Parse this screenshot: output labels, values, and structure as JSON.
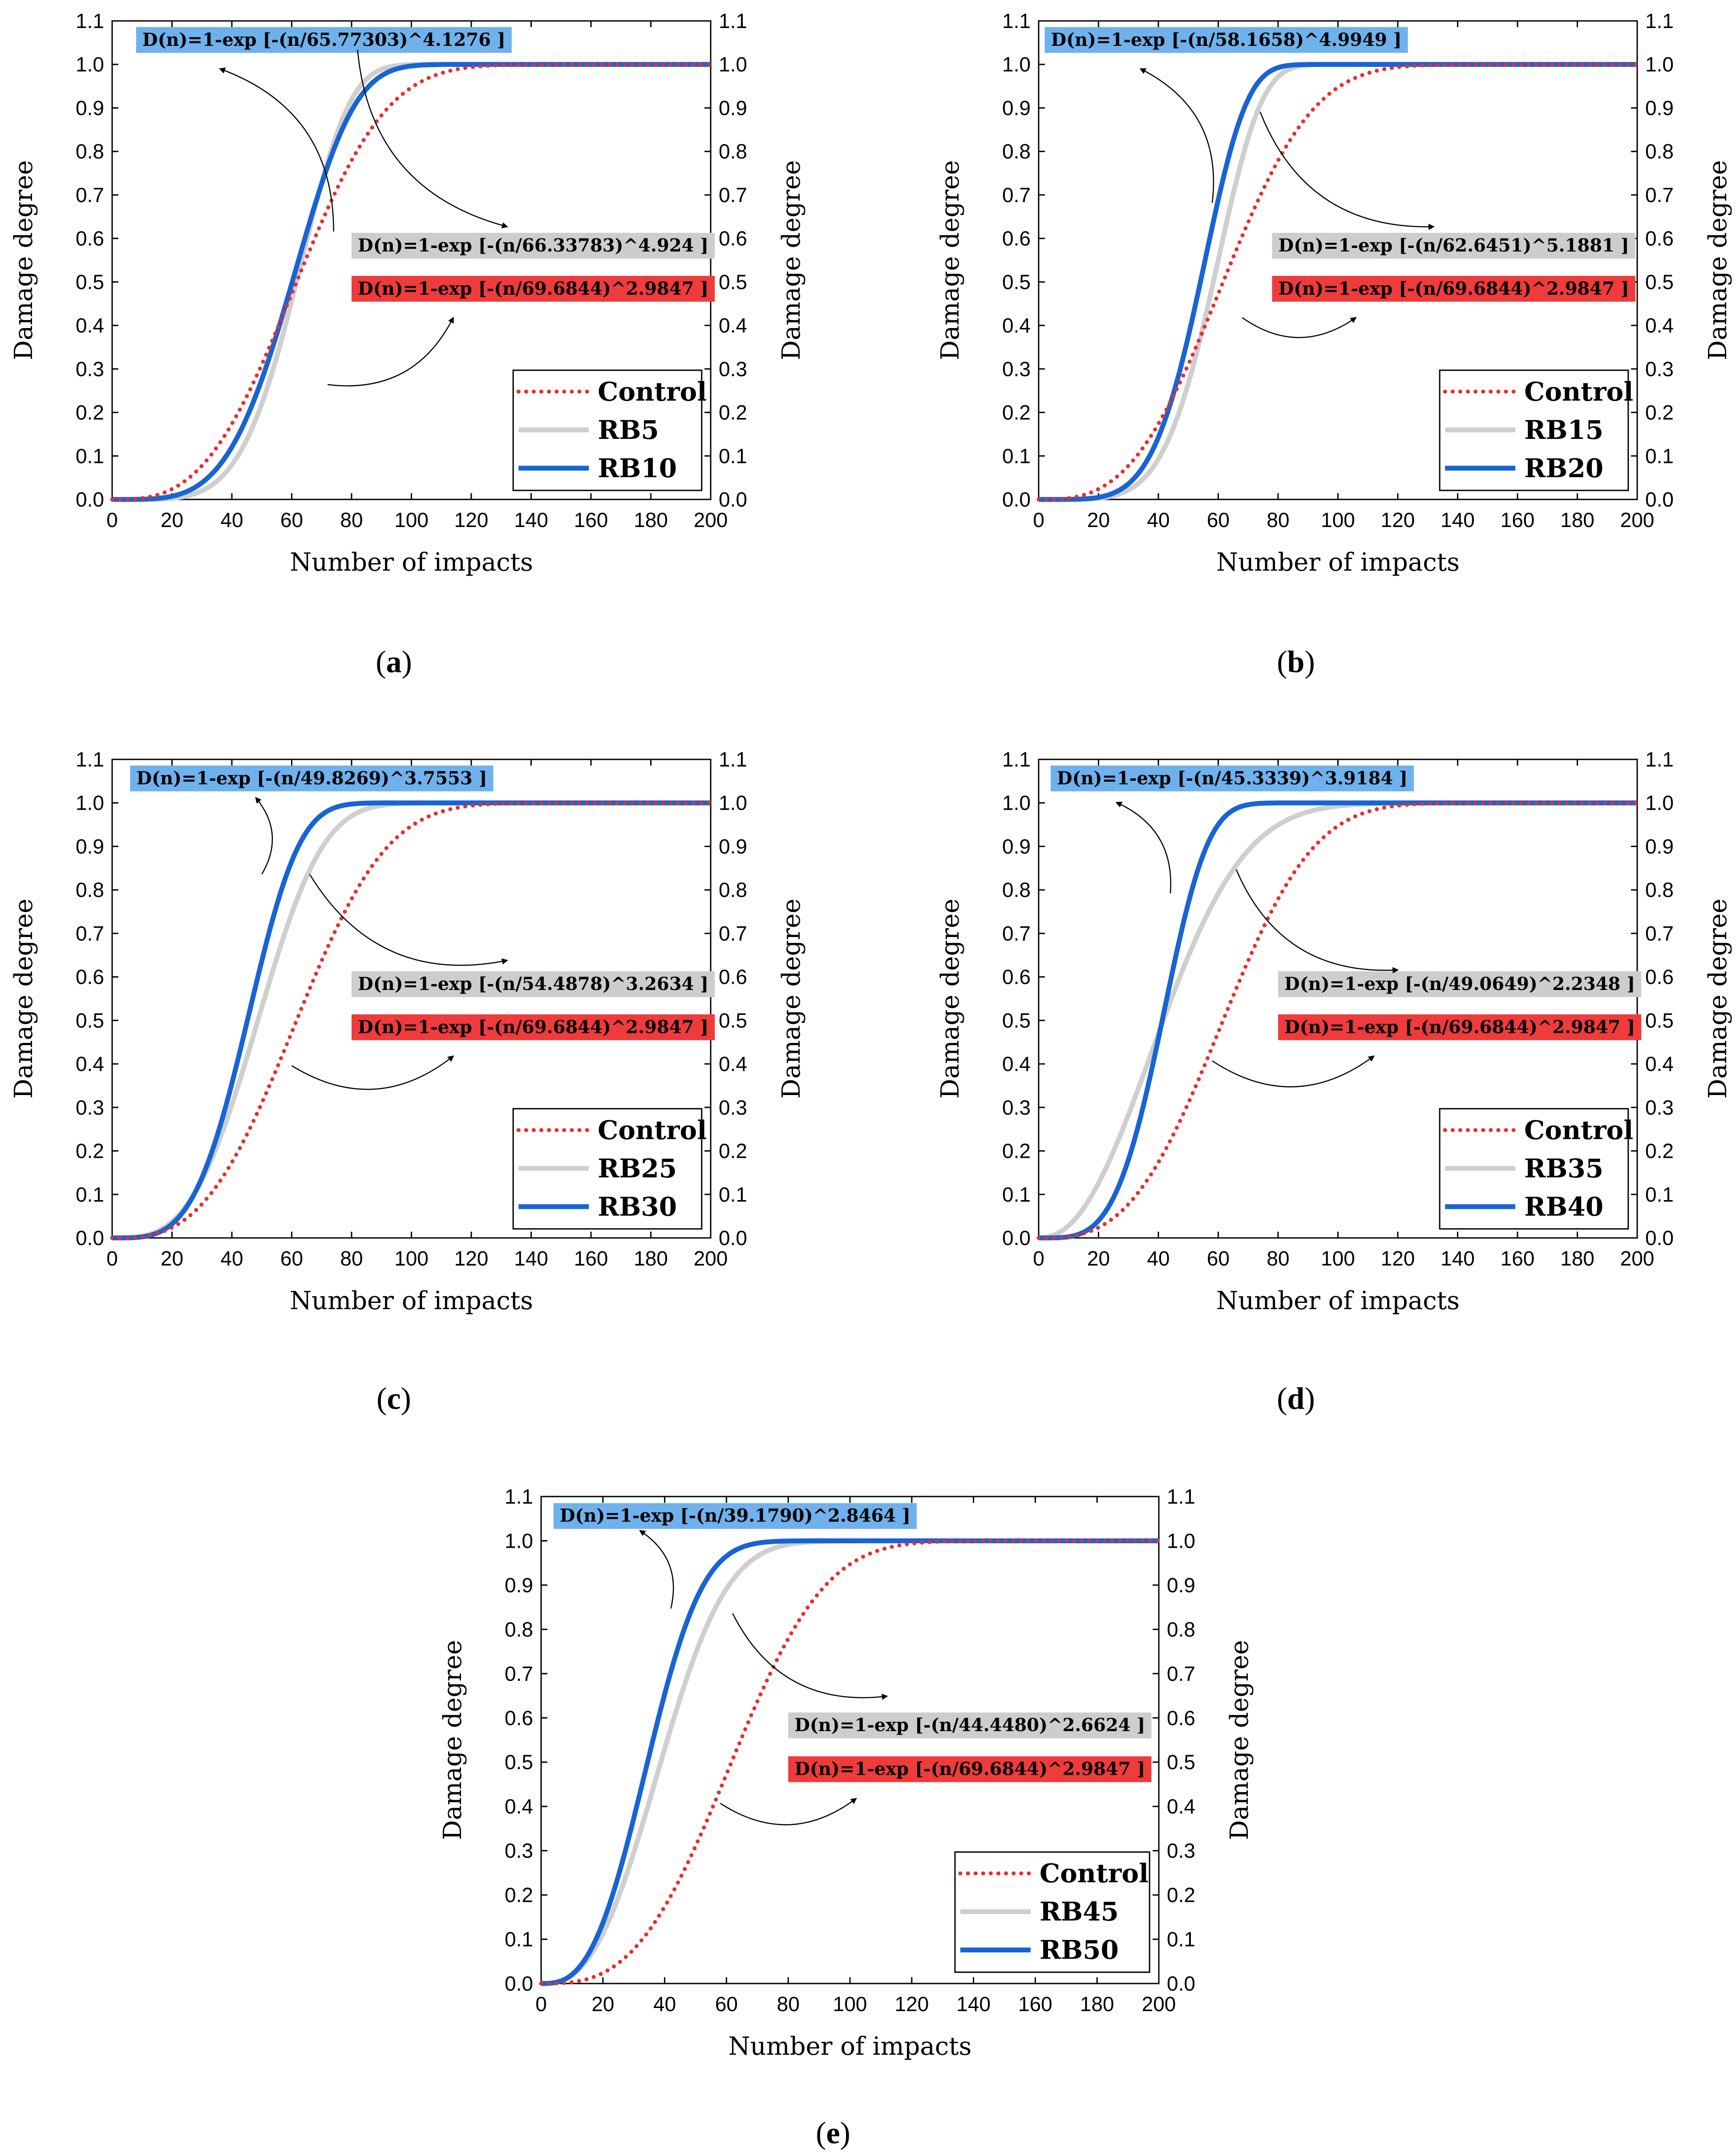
{
  "figure": {
    "colors": {
      "control": "#ee2b2b",
      "rb_light": "#cfcfcf",
      "rb_dark": "#1764d4",
      "eq_blue_bg": "#6fb1ec",
      "eq_gray_bg": "#cdcdcd",
      "eq_red_bg": "#ef3b3b"
    }
  },
  "chart_data": [
    {
      "type": "line",
      "panel_label": "a",
      "xlabel": "Number of impacts",
      "ylabel": "Damage degree",
      "ylabel_right": "Damage degree",
      "xlim": [
        0,
        200
      ],
      "ylim": [
        0,
        1.1
      ],
      "x_ticks": [
        "0",
        "20",
        "40",
        "60",
        "80",
        "100",
        "120",
        "140",
        "160",
        "180",
        "200"
      ],
      "y_ticks": [
        "0.0",
        "0.1",
        "0.2",
        "0.3",
        "0.4",
        "0.5",
        "0.6",
        "0.7",
        "0.8",
        "0.9",
        "1.0",
        "1.1"
      ],
      "series": [
        {
          "name": "Control",
          "style": "dotted",
          "color_key": "control",
          "eta": 69.6844,
          "beta": 2.9847
        },
        {
          "name": "RB5",
          "style": "solid",
          "color_key": "rb_light",
          "eta": 66.33783,
          "beta": 4.924
        },
        {
          "name": "RB10",
          "style": "solid",
          "color_key": "rb_dark",
          "eta": 65.77303,
          "beta": 4.1276
        }
      ],
      "equations": {
        "top": "D(n)=1-exp [-(n/65.77303)^4.1276 ]",
        "mid": "D(n)=1-exp [-(n/66.33783)^4.924 ]",
        "low": "D(n)=1-exp [-(n/69.6844)^2.9847 ]"
      }
    },
    {
      "type": "line",
      "panel_label": "b",
      "xlabel": "Number of impacts",
      "ylabel": "Damage degree",
      "ylabel_right": "Damage degree",
      "xlim": [
        0,
        200
      ],
      "ylim": [
        0,
        1.1
      ],
      "x_ticks": [
        "0",
        "20",
        "40",
        "60",
        "80",
        "100",
        "120",
        "140",
        "160",
        "180",
        "200"
      ],
      "y_ticks": [
        "0.0",
        "0.1",
        "0.2",
        "0.3",
        "0.4",
        "0.5",
        "0.6",
        "0.7",
        "0.8",
        "0.9",
        "1.0",
        "1.1"
      ],
      "series": [
        {
          "name": "Control",
          "style": "dotted",
          "color_key": "control",
          "eta": 69.6844,
          "beta": 2.9847
        },
        {
          "name": "RB15",
          "style": "solid",
          "color_key": "rb_light",
          "eta": 62.6451,
          "beta": 5.1881
        },
        {
          "name": "RB20",
          "style": "solid",
          "color_key": "rb_dark",
          "eta": 58.1658,
          "beta": 4.9949
        }
      ],
      "equations": {
        "top": "D(n)=1-exp [-(n/58.1658)^4.9949 ]",
        "mid": "D(n)=1-exp [-(n/62.6451)^5.1881 ]",
        "low": "D(n)=1-exp [-(n/69.6844)^2.9847 ]"
      }
    },
    {
      "type": "line",
      "panel_label": "c",
      "xlabel": "Number of impacts",
      "ylabel": "Damage degree",
      "ylabel_right": "Damage degree",
      "xlim": [
        0,
        200
      ],
      "ylim": [
        0,
        1.1
      ],
      "x_ticks": [
        "0",
        "20",
        "40",
        "60",
        "80",
        "100",
        "120",
        "140",
        "160",
        "180",
        "200"
      ],
      "y_ticks": [
        "0.0",
        "0.1",
        "0.2",
        "0.3",
        "0.4",
        "0.5",
        "0.6",
        "0.7",
        "0.8",
        "0.9",
        "1.0",
        "1.1"
      ],
      "series": [
        {
          "name": "Control",
          "style": "dotted",
          "color_key": "control",
          "eta": 69.6844,
          "beta": 2.9847
        },
        {
          "name": "RB25",
          "style": "solid",
          "color_key": "rb_light",
          "eta": 54.4878,
          "beta": 3.2634
        },
        {
          "name": "RB30",
          "style": "solid",
          "color_key": "rb_dark",
          "eta": 49.8269,
          "beta": 3.7553
        }
      ],
      "equations": {
        "top": "D(n)=1-exp [-(n/49.8269)^3.7553 ]",
        "mid": "D(n)=1-exp [-(n/54.4878)^3.2634 ]",
        "low": "D(n)=1-exp [-(n/69.6844)^2.9847 ]"
      }
    },
    {
      "type": "line",
      "panel_label": "d",
      "xlabel": "Number of impacts",
      "ylabel": "Damage degree",
      "ylabel_right": "Damage degree",
      "xlim": [
        0,
        200
      ],
      "ylim": [
        0,
        1.1
      ],
      "x_ticks": [
        "0",
        "20",
        "40",
        "60",
        "80",
        "100",
        "120",
        "140",
        "160",
        "180",
        "200"
      ],
      "y_ticks": [
        "0.0",
        "0.1",
        "0.2",
        "0.3",
        "0.4",
        "0.5",
        "0.6",
        "0.7",
        "0.8",
        "0.9",
        "1.0",
        "1.1"
      ],
      "series": [
        {
          "name": "Control",
          "style": "dotted",
          "color_key": "control",
          "eta": 69.6844,
          "beta": 2.9847
        },
        {
          "name": "RB35",
          "style": "solid",
          "color_key": "rb_light",
          "eta": 49.0649,
          "beta": 2.2348
        },
        {
          "name": "RB40",
          "style": "solid",
          "color_key": "rb_dark",
          "eta": 45.3339,
          "beta": 3.9184
        }
      ],
      "equations": {
        "top": "D(n)=1-exp [-(n/45.3339)^3.9184 ]",
        "mid": "D(n)=1-exp [-(n/49.0649)^2.2348 ]",
        "low": "D(n)=1-exp [-(n/69.6844)^2.9847 ]"
      }
    },
    {
      "type": "line",
      "panel_label": "e",
      "xlabel": "Number of impacts",
      "ylabel": "Damage degree",
      "ylabel_right": "Damage degree",
      "xlim": [
        0,
        200
      ],
      "ylim": [
        0,
        1.1
      ],
      "x_ticks": [
        "0",
        "20",
        "40",
        "60",
        "80",
        "100",
        "120",
        "140",
        "160",
        "180",
        "200"
      ],
      "y_ticks": [
        "0.0",
        "0.1",
        "0.2",
        "0.3",
        "0.4",
        "0.5",
        "0.6",
        "0.7",
        "0.8",
        "0.9",
        "1.0",
        "1.1"
      ],
      "series": [
        {
          "name": "Control",
          "style": "dotted",
          "color_key": "control",
          "eta": 69.6844,
          "beta": 2.9847
        },
        {
          "name": "RB45",
          "style": "solid",
          "color_key": "rb_light",
          "eta": 44.448,
          "beta": 2.6624
        },
        {
          "name": "RB50",
          "style": "solid",
          "color_key": "rb_dark",
          "eta": 39.179,
          "beta": 2.8464
        }
      ],
      "equations": {
        "top": "D(n)=1-exp [-(n/39.1790)^2.8464 ]",
        "mid": "D(n)=1-exp [-(n/44.4480)^2.6624 ]",
        "low": "D(n)=1-exp [-(n/69.6844)^2.9847 ]"
      }
    }
  ]
}
